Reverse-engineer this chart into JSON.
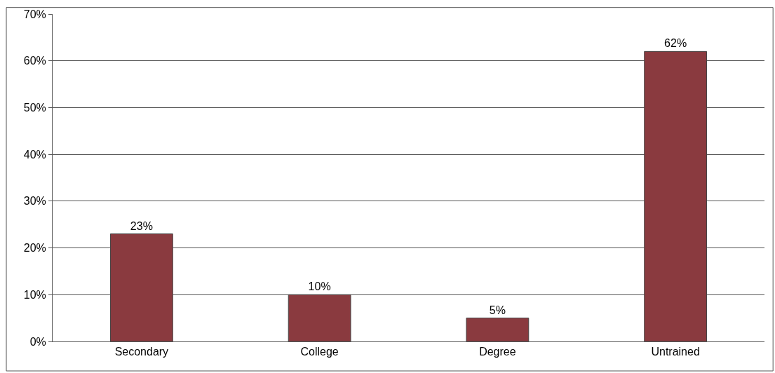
{
  "chart_data": {
    "type": "bar",
    "categories": [
      "Secondary",
      "College",
      "Degree",
      "Untrained"
    ],
    "values": [
      23,
      10,
      5,
      62
    ],
    "value_labels": [
      "23%",
      "10%",
      "5%",
      "62%"
    ],
    "color": "#8a3a3f",
    "ylim": [
      0,
      70
    ],
    "yticks": [
      {
        "value": 0,
        "label": "0%"
      },
      {
        "value": 10,
        "label": "10%"
      },
      {
        "value": 20,
        "label": "20%"
      },
      {
        "value": 30,
        "label": "30%"
      },
      {
        "value": 40,
        "label": "40%"
      },
      {
        "value": 50,
        "label": "50%"
      },
      {
        "value": 60,
        "label": "60%"
      },
      {
        "value": 70,
        "label": "70%"
      }
    ],
    "grid": "y",
    "legend": false
  }
}
